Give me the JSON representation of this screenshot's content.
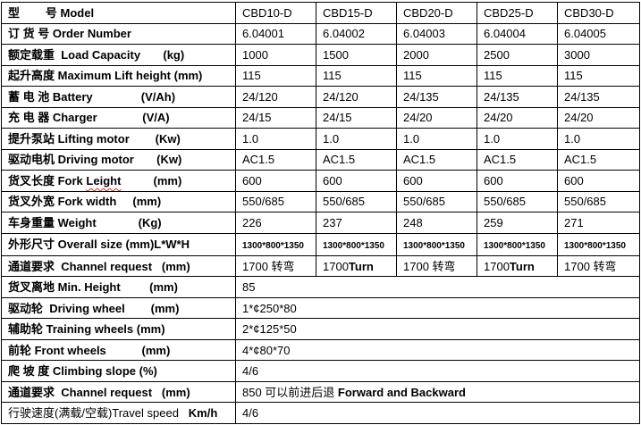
{
  "page": {
    "background": "#ffffff",
    "border_color": "#000000",
    "text_color": "#000000",
    "squiggle_color": "#e02a20"
  },
  "table": {
    "models": [
      "CBD10-D",
      "CBD15-D",
      "CBD20-D",
      "CBD25-D",
      "CBD30-D"
    ],
    "rows": [
      {
        "name": "model",
        "label": [
          {
            "t": "型        号 Model",
            "b": true
          }
        ],
        "cells": [
          [
            {
              "t": "CBD10-D"
            }
          ],
          [
            {
              "t": "CBD15-D"
            }
          ],
          [
            {
              "t": "CBD20-D"
            }
          ],
          [
            {
              "t": "CBD25-D"
            }
          ],
          [
            {
              "t": "CBD30-D"
            }
          ]
        ]
      },
      {
        "name": "order-number",
        "label": [
          {
            "t": "订 货 号 Order Number",
            "b": true
          }
        ],
        "cells": [
          [
            {
              "t": "6.04001"
            }
          ],
          [
            {
              "t": "6.04002"
            }
          ],
          [
            {
              "t": "6.04003"
            }
          ],
          [
            {
              "t": "6.04004"
            }
          ],
          [
            {
              "t": "6.04005"
            }
          ]
        ]
      },
      {
        "name": "load-capacity",
        "label": [
          {
            "t": "额定载重  Load Capacity       (kg)",
            "b": true
          }
        ],
        "cells": [
          [
            {
              "t": "1000"
            }
          ],
          [
            {
              "t": "1500"
            }
          ],
          [
            {
              "t": "2000"
            }
          ],
          [
            {
              "t": "2500"
            }
          ],
          [
            {
              "t": "3000"
            }
          ]
        ]
      },
      {
        "name": "max-lift-height",
        "label": [
          {
            "t": "起升高度 Maximum Lift height (mm)",
            "b": true
          }
        ],
        "cells": [
          [
            {
              "t": "115"
            }
          ],
          [
            {
              "t": "115"
            }
          ],
          [
            {
              "t": "115"
            }
          ],
          [
            {
              "t": "115"
            }
          ],
          [
            {
              "t": "115"
            }
          ]
        ]
      },
      {
        "name": "battery",
        "label": [
          {
            "t": "蓄 电 池 Battery               (V/Ah)",
            "b": true
          }
        ],
        "cells": [
          [
            {
              "t": "24/120"
            }
          ],
          [
            {
              "t": "24/120"
            }
          ],
          [
            {
              "t": "24/135"
            }
          ],
          [
            {
              "t": "24/135"
            }
          ],
          [
            {
              "t": "24/135"
            }
          ]
        ]
      },
      {
        "name": "charger",
        "label": [
          {
            "t": "充 电 器 Charger              (V/A)",
            "b": true
          }
        ],
        "cells": [
          [
            {
              "t": "24/15"
            }
          ],
          [
            {
              "t": "24/15"
            }
          ],
          [
            {
              "t": "24/20"
            }
          ],
          [
            {
              "t": "24/20"
            }
          ],
          [
            {
              "t": "24/20"
            }
          ]
        ]
      },
      {
        "name": "lifting-motor",
        "label": [
          {
            "t": "提升泵站 Lifting motor        (Kw)",
            "b": true
          }
        ],
        "cells": [
          [
            {
              "t": "1.0"
            }
          ],
          [
            {
              "t": "1.0"
            }
          ],
          [
            {
              "t": "1.0"
            }
          ],
          [
            {
              "t": "1.0"
            }
          ],
          [
            {
              "t": "1.0"
            }
          ]
        ]
      },
      {
        "name": "driving-motor",
        "label": [
          {
            "t": "驱动电机 Driving motor       (Kw)",
            "b": true
          }
        ],
        "cells": [
          [
            {
              "t": "AC1.5"
            }
          ],
          [
            {
              "t": "AC1.5"
            }
          ],
          [
            {
              "t": "AC1.5"
            }
          ],
          [
            {
              "t": "AC1.5"
            }
          ],
          [
            {
              "t": "AC1.5"
            }
          ]
        ]
      },
      {
        "name": "fork-length",
        "label": [
          {
            "t": "货叉长度 Fork ",
            "b": true
          },
          {
            "t": "Leight",
            "b": true,
            "sq": true
          },
          {
            "t": "          (mm)",
            "b": true
          }
        ],
        "cells": [
          [
            {
              "t": "600"
            }
          ],
          [
            {
              "t": "600"
            }
          ],
          [
            {
              "t": "600"
            }
          ],
          [
            {
              "t": "600"
            }
          ],
          [
            {
              "t": "600"
            }
          ]
        ]
      },
      {
        "name": "fork-width",
        "label": [
          {
            "t": "货叉外宽 Fork width     (mm)",
            "b": true
          }
        ],
        "cells": [
          [
            {
              "t": "550/685"
            }
          ],
          [
            {
              "t": "550/685"
            }
          ],
          [
            {
              "t": "550/685"
            }
          ],
          [
            {
              "t": "550/685"
            }
          ],
          [
            {
              "t": "550/685"
            }
          ]
        ]
      },
      {
        "name": "weight",
        "label": [
          {
            "t": "车身重量 Weight             (Kg)",
            "b": true
          }
        ],
        "cells": [
          [
            {
              "t": "226"
            }
          ],
          [
            {
              "t": "237"
            }
          ],
          [
            {
              "t": "248"
            }
          ],
          [
            {
              "t": "259"
            }
          ],
          [
            {
              "t": "271"
            }
          ]
        ]
      },
      {
        "name": "overall-size",
        "label": [
          {
            "t": "外形尺寸 Overall size (mm)L*W*H",
            "b": true
          }
        ],
        "cells": [
          [
            {
              "t": "1300*800*1350",
              "sm": true
            }
          ],
          [
            {
              "t": "1300*800*1350",
              "sm": true
            }
          ],
          [
            {
              "t": "1300*800*1350",
              "sm": true
            }
          ],
          [
            {
              "t": "1300*800*1350",
              "sm": true
            }
          ],
          [
            {
              "t": "1300*800*1350",
              "sm": true
            }
          ]
        ]
      },
      {
        "name": "channel-request-turn",
        "label": [
          {
            "t": "通道要求  Channel request   (mm)",
            "b": true
          }
        ],
        "cells": [
          [
            {
              "t": "1700 转弯"
            }
          ],
          [
            {
              "t": "1700"
            },
            {
              "t": "Turn",
              "b": true
            }
          ],
          [
            {
              "t": "1700 转弯"
            }
          ],
          [
            {
              "t": "1700"
            },
            {
              "t": "Turn",
              "b": true
            }
          ],
          [
            {
              "t": "1700 转弯"
            }
          ]
        ]
      },
      {
        "name": "min-height",
        "label": [
          {
            "t": "货叉离地 Min. Height         (mm)",
            "b": true
          }
        ],
        "span": 5,
        "cells": [
          [
            {
              "t": "85"
            }
          ]
        ]
      },
      {
        "name": "driving-wheel",
        "label": [
          {
            "t": "驱动轮  Driving wheel        (mm)",
            "b": true
          }
        ],
        "span": 5,
        "cells": [
          [
            {
              "t": "1*¢250*80"
            }
          ]
        ]
      },
      {
        "name": "training-wheels",
        "label": [
          {
            "t": "辅助轮 Training wheels (mm)",
            "b": true
          }
        ],
        "span": 5,
        "cells": [
          [
            {
              "t": "2*¢125*50"
            }
          ]
        ]
      },
      {
        "name": "front-wheels",
        "label": [
          {
            "t": "前轮 Front wheels           (mm)",
            "b": true
          }
        ],
        "span": 5,
        "cells": [
          [
            {
              "t": "4*¢80*70"
            }
          ]
        ]
      },
      {
        "name": "climbing-slope",
        "label": [
          {
            "t": "爬 坡 度 Climbing slope (%)",
            "b": true
          }
        ],
        "span": 5,
        "cells": [
          [
            {
              "t": "4/6"
            }
          ]
        ]
      },
      {
        "name": "channel-request-forward",
        "label": [
          {
            "t": "通道要求  Channel request   (mm)",
            "b": true
          }
        ],
        "span": 5,
        "cells": [
          [
            {
              "t": "850 可以前进后退 "
            },
            {
              "t": "Forward and Backward",
              "b": true
            }
          ]
        ]
      },
      {
        "name": "travel-speed",
        "label": [
          {
            "t": "行驶速度(满载/空载)Travel speed   "
          },
          {
            "t": "Km/h",
            "b": true
          }
        ],
        "span": 5,
        "cells": [
          [
            {
              "t": "4/6"
            }
          ]
        ]
      }
    ]
  }
}
